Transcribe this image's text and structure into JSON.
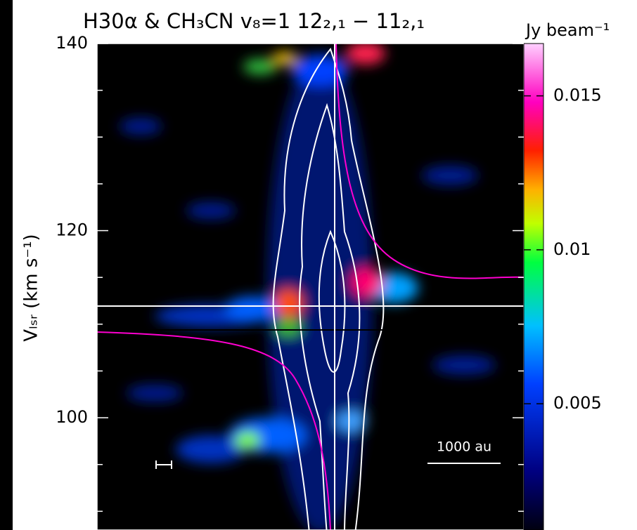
{
  "chart_data": {
    "type": "pv-diagram",
    "title": "H30α & CH₃CN v₈=1 12₂,₁ − 11₂,₁",
    "ylabel": "Vₗₛᵣ (km s⁻¹)",
    "ylim": [
      88,
      140
    ],
    "yticks": [
      100,
      120,
      140
    ],
    "yminorticks": [
      90,
      95,
      105,
      110,
      115,
      125,
      130,
      135
    ],
    "colorbar_label": "Jy beam⁻¹",
    "clim": [
      0.0009,
      0.0167
    ],
    "cticks": [
      0.005,
      0.01,
      0.015
    ],
    "scalebar_label": "1000 au"
  }
}
